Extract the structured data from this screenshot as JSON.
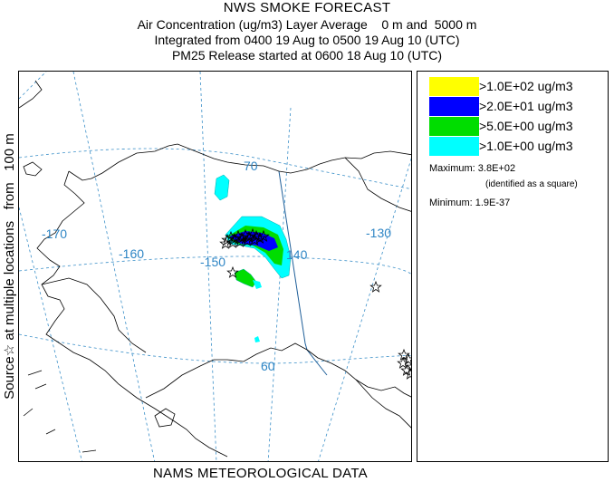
{
  "header": {
    "title": "NWS SMOKE FORECAST",
    "line2": "Air Concentration (ug/m3) Layer Average    0 m and  5000 m",
    "line3": "Integrated from 0400 19 Aug to 0500 19 Aug 10 (UTC)",
    "line4": "PM25 Release started at 0600 18 Aug 10 (UTC)"
  },
  "side_label": "Source☆ at multiple locations   from   100 m",
  "footer": "NAMS METEOROLOGICAL DATA",
  "map": {
    "longitude_labels": [
      "-170",
      "-160",
      "-150",
      "140",
      "-130"
    ],
    "latitude_labels": [
      "70",
      "60"
    ],
    "colors": {
      "coast": "#000000",
      "grid": "#3a8fc8",
      "border": "#1f5f99"
    }
  },
  "legend": {
    "levels": [
      {
        "label": ">1.0E+02 ug/m3",
        "color": "#ffff00"
      },
      {
        "label": ">2.0E+01 ug/m3",
        "color": "#0000ff"
      },
      {
        "label": ">5.0E+00 ug/m3",
        "color": "#00dd00"
      },
      {
        "label": ">1.0E+00 ug/m3",
        "color": "#00ffff"
      }
    ],
    "maximum": "Maximum: 3.8E+02",
    "max_note": "(identified as a square)",
    "minimum": "Minimum: 1.9E-37"
  }
}
